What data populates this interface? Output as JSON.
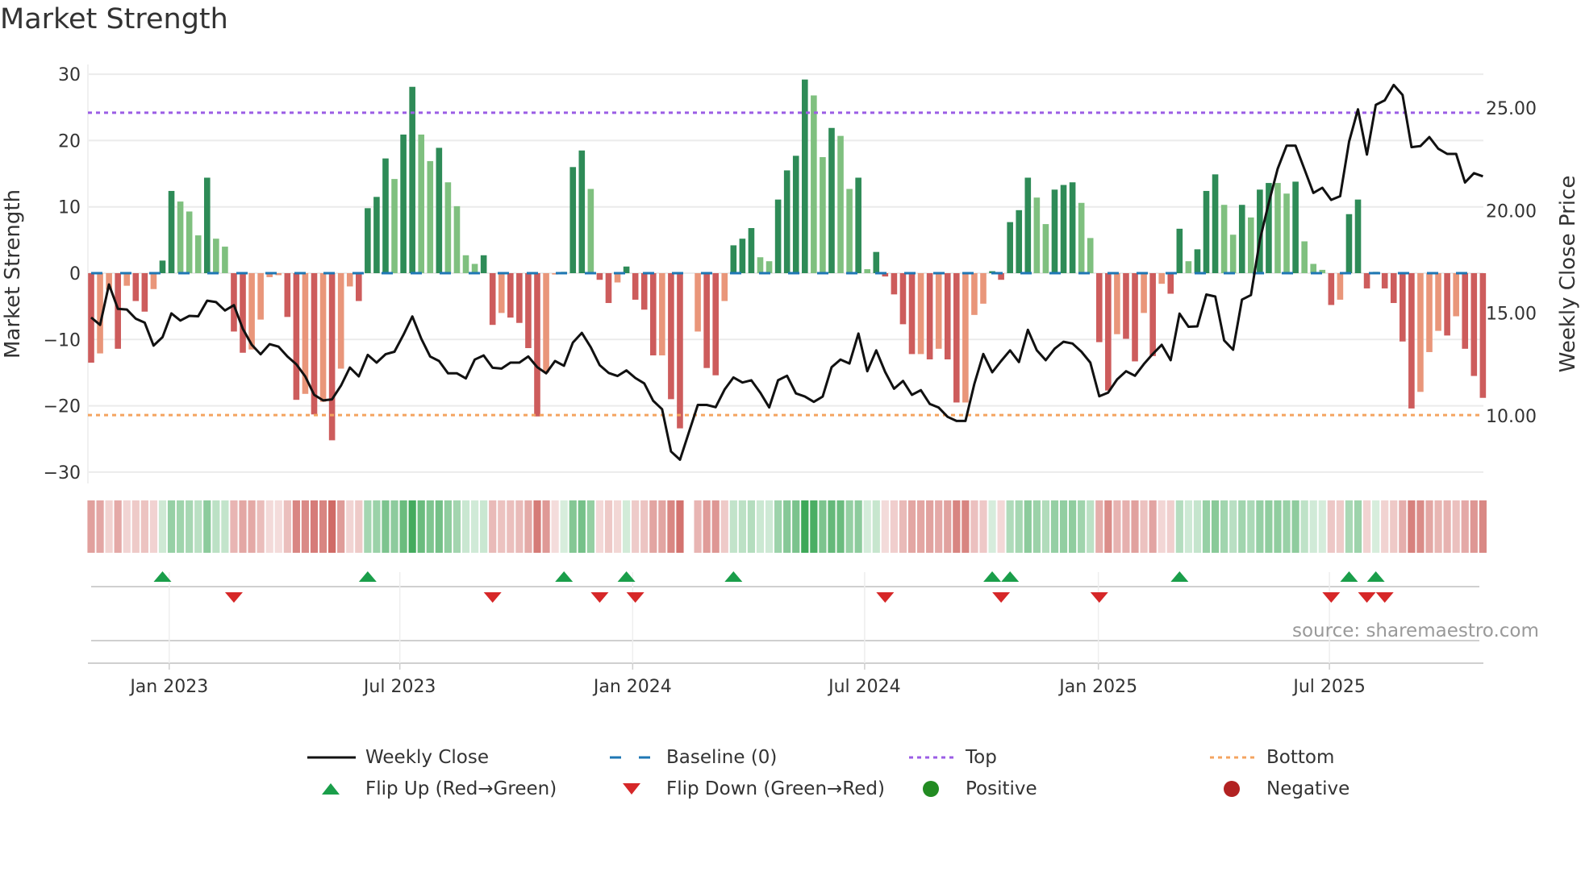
{
  "chart_data": {
    "type": "bar",
    "title": "Market Strength",
    "ylabel": "Market Strength",
    "y2label": "Weekly Close Price",
    "ylim": [
      -30,
      30
    ],
    "y2lim": [
      6.6,
      27.6
    ],
    "yticks": [
      "30",
      "20",
      "10",
      "0",
      "−10",
      "−20",
      "−30"
    ],
    "ytick_values": [
      30,
      20,
      10,
      0,
      -10,
      -20,
      -30
    ],
    "y2ticks": [
      "25.00",
      "20.00",
      "15.00",
      "10.00"
    ],
    "y2tick_values": [
      25,
      20,
      15,
      10
    ],
    "x_unit": "week index",
    "xticks": [
      {
        "label": "Jan 2023",
        "week": 8.75
      },
      {
        "label": "Jul 2023",
        "week": 34.6
      },
      {
        "label": "Jan 2024",
        "week": 60.7
      },
      {
        "label": "Jul 2024",
        "week": 86.7
      },
      {
        "label": "Jan 2025",
        "week": 112.9
      },
      {
        "label": "Jul 2025",
        "week": 138.8
      }
    ],
    "top_level": 24.2,
    "bottom_level": -21.4,
    "baseline": 0,
    "strength": [
      -13.5,
      -12.1,
      -2.5,
      -11.4,
      -1.9,
      -4.2,
      -5.8,
      -2.4,
      1.9,
      12.4,
      10.8,
      9.3,
      5.7,
      14.4,
      5.2,
      4.0,
      -8.8,
      -12.0,
      -11.5,
      -7.0,
      -0.6,
      -0.3,
      -6.6,
      -19.1,
      -18.2,
      -21.3,
      -19.4,
      -25.2,
      -14.4,
      -2.0,
      -4.2,
      9.8,
      11.5,
      17.3,
      14.2,
      20.9,
      28.1,
      20.9,
      16.9,
      18.9,
      13.7,
      10.1,
      2.7,
      1.4,
      2.7,
      -7.8,
      -6.0,
      -6.7,
      -7.5,
      -11.3,
      -21.6,
      -15.0,
      -0.2,
      0.2,
      16.0,
      18.5,
      12.7,
      -1.0,
      -4.5,
      -1.4,
      1.0,
      -4.0,
      -5.5,
      -12.4,
      -12.4,
      -19.0,
      -23.4,
      null,
      -8.8,
      -14.3,
      -15.4,
      -4.2,
      4.2,
      5.2,
      6.8,
      2.4,
      1.8,
      11.1,
      15.5,
      17.7,
      29.2,
      26.8,
      17.5,
      21.9,
      20.7,
      12.7,
      14.4,
      0.6,
      3.2,
      -0.5,
      -3.2,
      -7.7,
      -12.2,
      -12.2,
      -13.0,
      -11.4,
      -13.0,
      -19.5,
      -19.5,
      -6.3,
      -4.6,
      0.3,
      -1.0,
      7.7,
      9.5,
      14.4,
      11.4,
      7.4,
      12.6,
      13.3,
      13.7,
      10.6,
      5.3,
      -10.4,
      -17.7,
      -9.2,
      -9.9,
      -13.3,
      -6.0,
      -12.5,
      -1.6,
      -3.1,
      6.7,
      1.8,
      3.6,
      12.4,
      14.9,
      10.3,
      5.8,
      10.3,
      8.4,
      12.6,
      13.6,
      13.6,
      12.0,
      13.8,
      4.8,
      1.4,
      0.5,
      -4.8,
      -4.0,
      8.9,
      11.1,
      -2.3,
      0.2,
      -2.3,
      -4.5,
      -10.3,
      -20.4,
      -17.9,
      -11.9,
      -8.7,
      -9.4,
      -6.5,
      -11.4,
      -15.5,
      -18.8
    ],
    "weekly_close": [
      14.79,
      14.43,
      16.4,
      15.21,
      15.18,
      14.73,
      14.54,
      13.42,
      13.83,
      14.99,
      14.64,
      14.87,
      14.85,
      15.61,
      15.54,
      15.13,
      15.39,
      14.24,
      13.46,
      13.0,
      13.49,
      13.37,
      12.89,
      12.51,
      11.92,
      11.02,
      10.75,
      10.8,
      11.47,
      12.35,
      11.92,
      12.97,
      12.59,
      13.0,
      13.12,
      13.94,
      14.84,
      13.76,
      12.89,
      12.67,
      12.07,
      12.07,
      11.82,
      12.74,
      12.94,
      12.34,
      12.3,
      12.59,
      12.59,
      12.89,
      12.37,
      12.07,
      12.67,
      12.44,
      13.57,
      14.04,
      13.34,
      12.47,
      12.09,
      11.94,
      12.21,
      11.84,
      11.58,
      10.73,
      10.32,
      8.26,
      7.86,
      null,
      10.53,
      10.53,
      10.42,
      11.28,
      11.87,
      11.62,
      11.73,
      11.13,
      10.41,
      11.73,
      11.95,
      11.09,
      10.94,
      10.68,
      10.94,
      12.37,
      12.74,
      12.55,
      14.01,
      12.17,
      13.19,
      12.14,
      11.32,
      11.7,
      11.02,
      11.25,
      10.58,
      10.4,
      9.95,
      9.75,
      9.75,
      11.55,
      13.01,
      12.12,
      12.67,
      13.19,
      12.62,
      14.19,
      13.19,
      12.71,
      13.27,
      13.61,
      13.52,
      13.12,
      12.59,
      10.95,
      11.13,
      11.77,
      12.17,
      11.95,
      12.52,
      13.01,
      13.46,
      12.71,
      14.98,
      14.34,
      14.36,
      15.91,
      15.81,
      13.67,
      13.22,
      15.66,
      15.88,
      18.57,
      20.37,
      22.04,
      23.16,
      23.16,
      22.01,
      20.86,
      21.11,
      20.52,
      20.7,
      23.36,
      24.93,
      22.73,
      25.15,
      25.37,
      26.12,
      25.63,
      23.09,
      23.14,
      23.58,
      23.01,
      22.76,
      22.76,
      21.37,
      21.82,
      21.67
    ],
    "flip_up_weeks": [
      8,
      31,
      53,
      60,
      72,
      101,
      103,
      122,
      141,
      144
    ],
    "flip_down_weeks": [
      16,
      45,
      57,
      61,
      89,
      102,
      113,
      139,
      143,
      145
    ],
    "legend_placement": "bottom-center",
    "legend": [
      {
        "key": "weekly_close",
        "label": "Weekly Close"
      },
      {
        "key": "baseline",
        "label": "Baseline (0)"
      },
      {
        "key": "top",
        "label": "Top"
      },
      {
        "key": "bottom",
        "label": "Bottom"
      },
      {
        "key": "flip_up",
        "label": "Flip Up (Red→Green)"
      },
      {
        "key": "flip_down",
        "label": "Flip Down (Green→Red)"
      },
      {
        "key": "positive",
        "label": "Positive"
      },
      {
        "key": "negative",
        "label": "Negative"
      }
    ],
    "source": "source: sharemaestro.com",
    "colors": {
      "pos_strong": "#2e8b57",
      "pos_weak": "#7fc07f",
      "neg_strong": "#cd5c5c",
      "neg_weak": "#e9967a",
      "line": "#111111",
      "baseline": "#1f77b4",
      "top": "#9b5de5",
      "bottom": "#f4a460",
      "flip_up": "#1a9e4a",
      "flip_down": "#d62728",
      "positive": "#228b22",
      "negative": "#b22222",
      "grid": "#ebebeb"
    }
  }
}
